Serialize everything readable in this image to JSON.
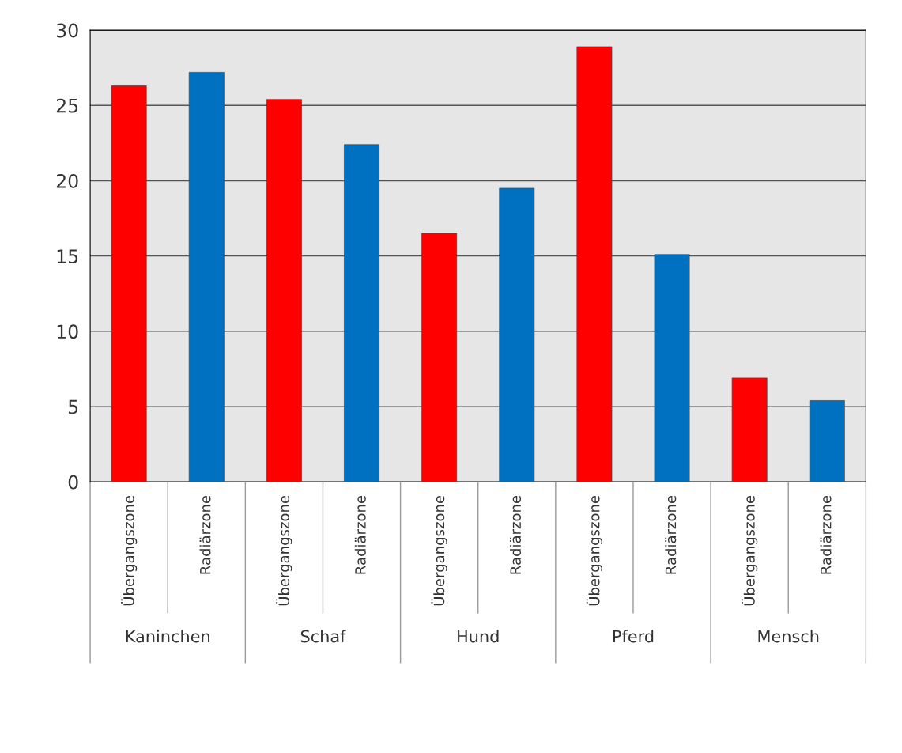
{
  "chart_data": {
    "type": "bar",
    "categories": [
      "Übergangszone",
      "Radiärzone",
      "Übergangszone",
      "Radiärzone",
      "Übergangszone",
      "Radiärzone",
      "Übergangszone",
      "Radiärzone",
      "Übergangszone",
      "Radiärzone"
    ],
    "values": [
      26.3,
      27.2,
      25.4,
      22.4,
      16.5,
      19.5,
      28.9,
      15.1,
      6.9,
      5.4
    ],
    "colors": [
      "#ff0000",
      "#0070c0",
      "#ff0000",
      "#0070c0",
      "#ff0000",
      "#0070c0",
      "#ff0000",
      "#0070c0",
      "#ff0000",
      "#0070c0"
    ],
    "ylim": [
      0,
      30
    ],
    "yticks": [
      0,
      5,
      10,
      15,
      20,
      25,
      30
    ],
    "grid": "y",
    "annotations": [
      "Kaninchen",
      "Schaf",
      "Hund",
      "Pferd",
      "Mensch"
    ]
  }
}
